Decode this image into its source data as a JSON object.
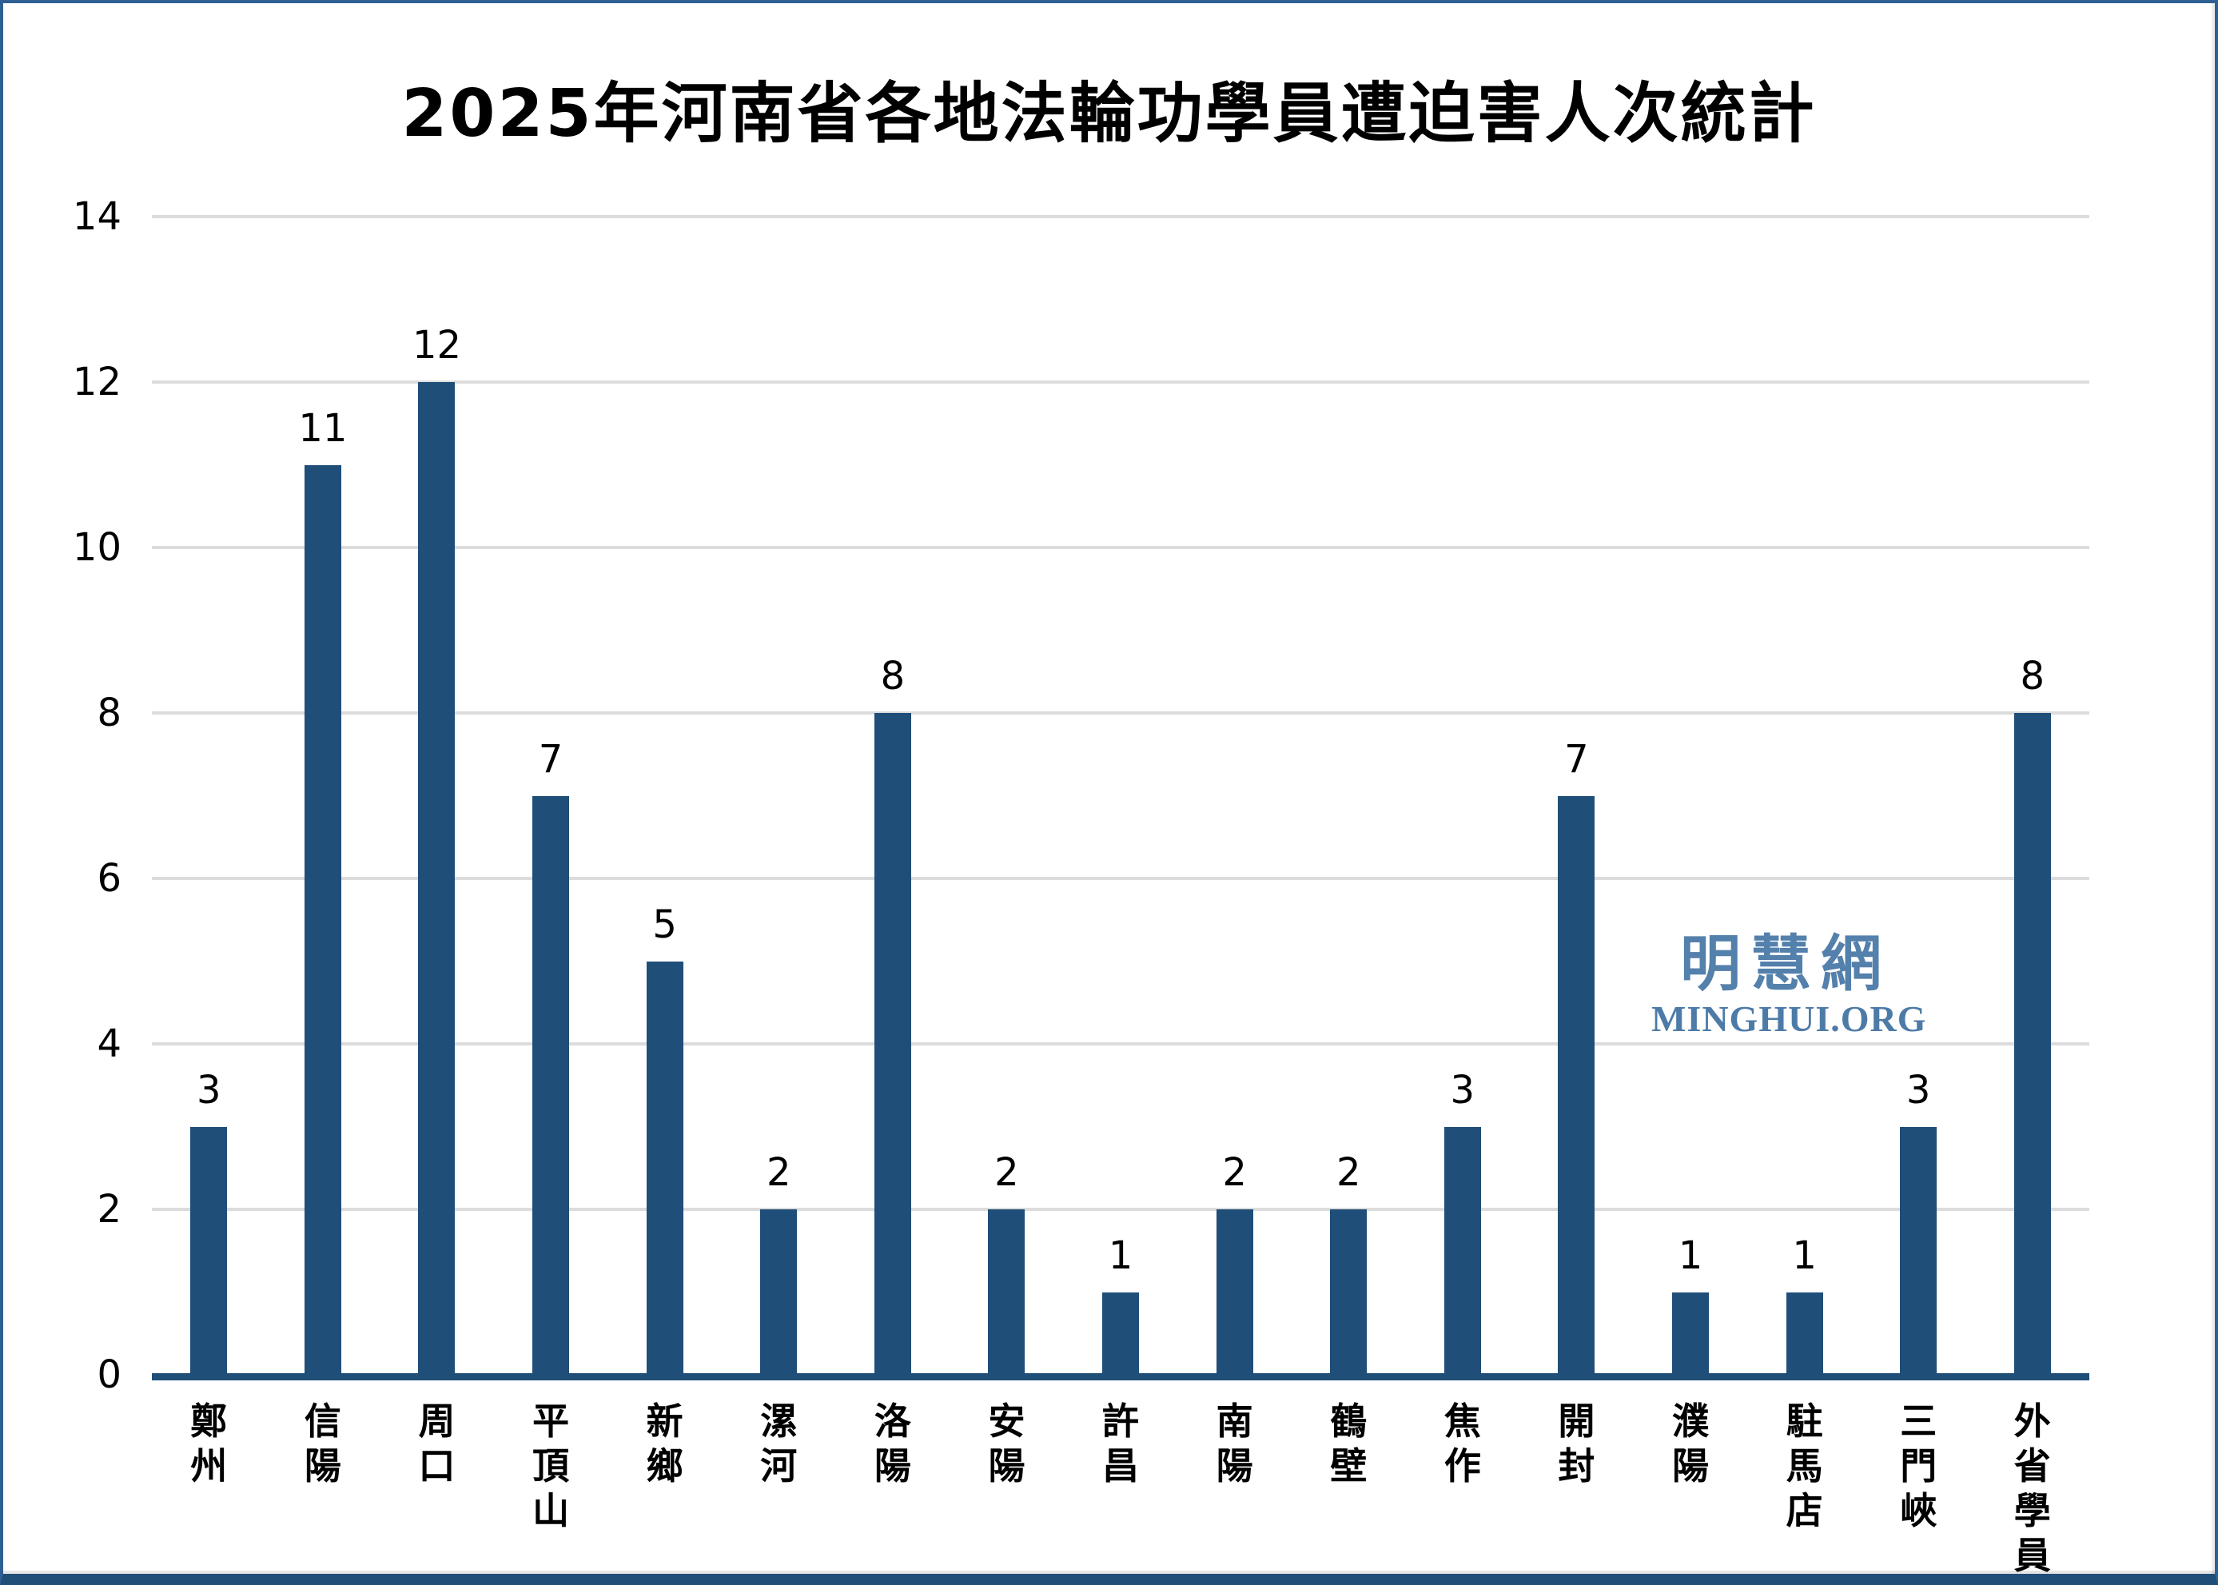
{
  "title": "2025年河南省各地法輪功學員遭迫害人次統計",
  "watermark": {
    "line1": "明慧網",
    "line2": "MINGHUI.ORG"
  },
  "colors": {
    "text": "#000000",
    "bar": "#1F4E79",
    "axis_line": "#1F4E79",
    "gridline": "#DCDCDC",
    "frame_border": "#2E6093",
    "frame_border_bottom": "#1F4E79",
    "watermark_cjk": "#5480AC",
    "watermark_latin": "#4D7BA7"
  },
  "y_axis": {
    "min": 0,
    "max": 14,
    "ticks": [
      0,
      2,
      4,
      6,
      8,
      10,
      12,
      14
    ]
  },
  "chart_data": {
    "type": "bar",
    "title": "2025年河南省各地法輪功學員遭迫害人次統計",
    "categories": [
      "鄭州",
      "信陽",
      "周口",
      "平頂山",
      "新鄉",
      "漯河",
      "洛陽",
      "安陽",
      "許昌",
      "南陽",
      "鶴壁",
      "焦作",
      "開封",
      "濮陽",
      "駐馬店",
      "三門峽",
      "外省學員"
    ],
    "values": [
      3,
      11,
      12,
      7,
      5,
      2,
      8,
      2,
      1,
      2,
      2,
      3,
      7,
      1,
      1,
      3,
      8
    ],
    "xlabel": "",
    "ylabel": "",
    "ylim": [
      0,
      14
    ],
    "ytick_step": 2,
    "grid": true,
    "legend": "none",
    "data_labels": true,
    "bar_color": "#1F4E79"
  }
}
